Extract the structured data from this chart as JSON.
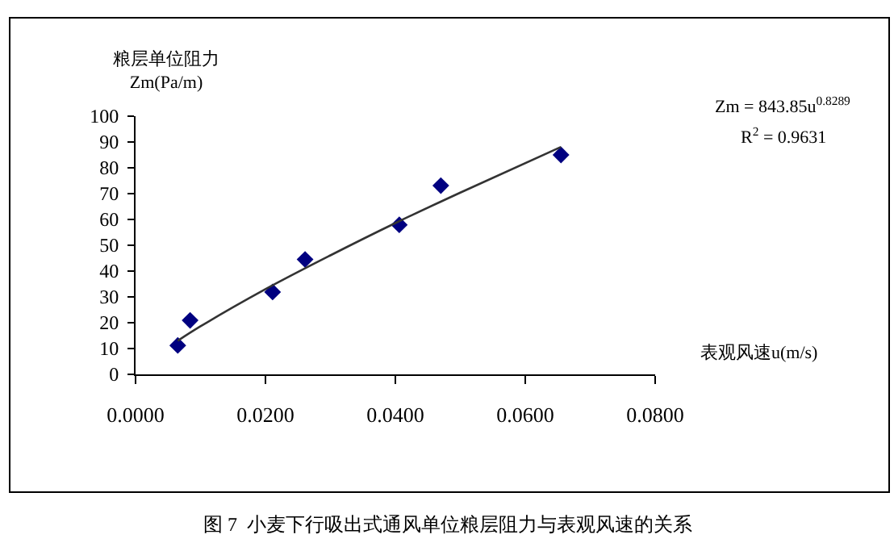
{
  "chart_data": {
    "type": "scatter",
    "xlabel": "表观风速u(m/s)",
    "ylabel": "粮层单位阻力\nZm(Pa/m)",
    "series": [
      {
        "color": "#000080",
        "marker": "diamond",
        "x": [
          0.0065,
          0.0084,
          0.0211,
          0.0261,
          0.0406,
          0.047,
          0.0655
        ],
        "values": [
          11.2,
          20.9,
          31.9,
          44.5,
          57.9,
          73.1,
          85.0
        ]
      },
      {
        "type": "line",
        "color": "#333333",
        "marker": "none",
        "line_style": "solid",
        "x": [
          0.0065,
          0.01,
          0.02,
          0.03,
          0.04,
          0.05,
          0.0655
        ],
        "values": [
          13.0,
          18.6,
          33.0,
          46.1,
          58.6,
          70.4,
          88.1
        ]
      }
    ],
    "xlim": [
      0,
      0.08
    ],
    "xticks": [
      {
        "value": 0,
        "label": "0.0000"
      },
      {
        "value": 0.02,
        "label": "0.0200"
      },
      {
        "value": 0.04,
        "label": "0.0400"
      },
      {
        "value": 0.06,
        "label": "0.0600"
      },
      {
        "value": 0.08,
        "label": "0.0800"
      }
    ],
    "ylim": [
      0,
      100
    ],
    "yticks": [
      0,
      10,
      20,
      30,
      40,
      50,
      60,
      70,
      80,
      90,
      100
    ],
    "grid": false,
    "legend": false,
    "annotations": [
      "Zm = 843.85u$^{0.8289}$",
      "R$^{2}$ = 0.9631",
      "图 7  小麦下行吸出式通风单位粮层阻力与表观风速的关系"
    ]
  }
}
